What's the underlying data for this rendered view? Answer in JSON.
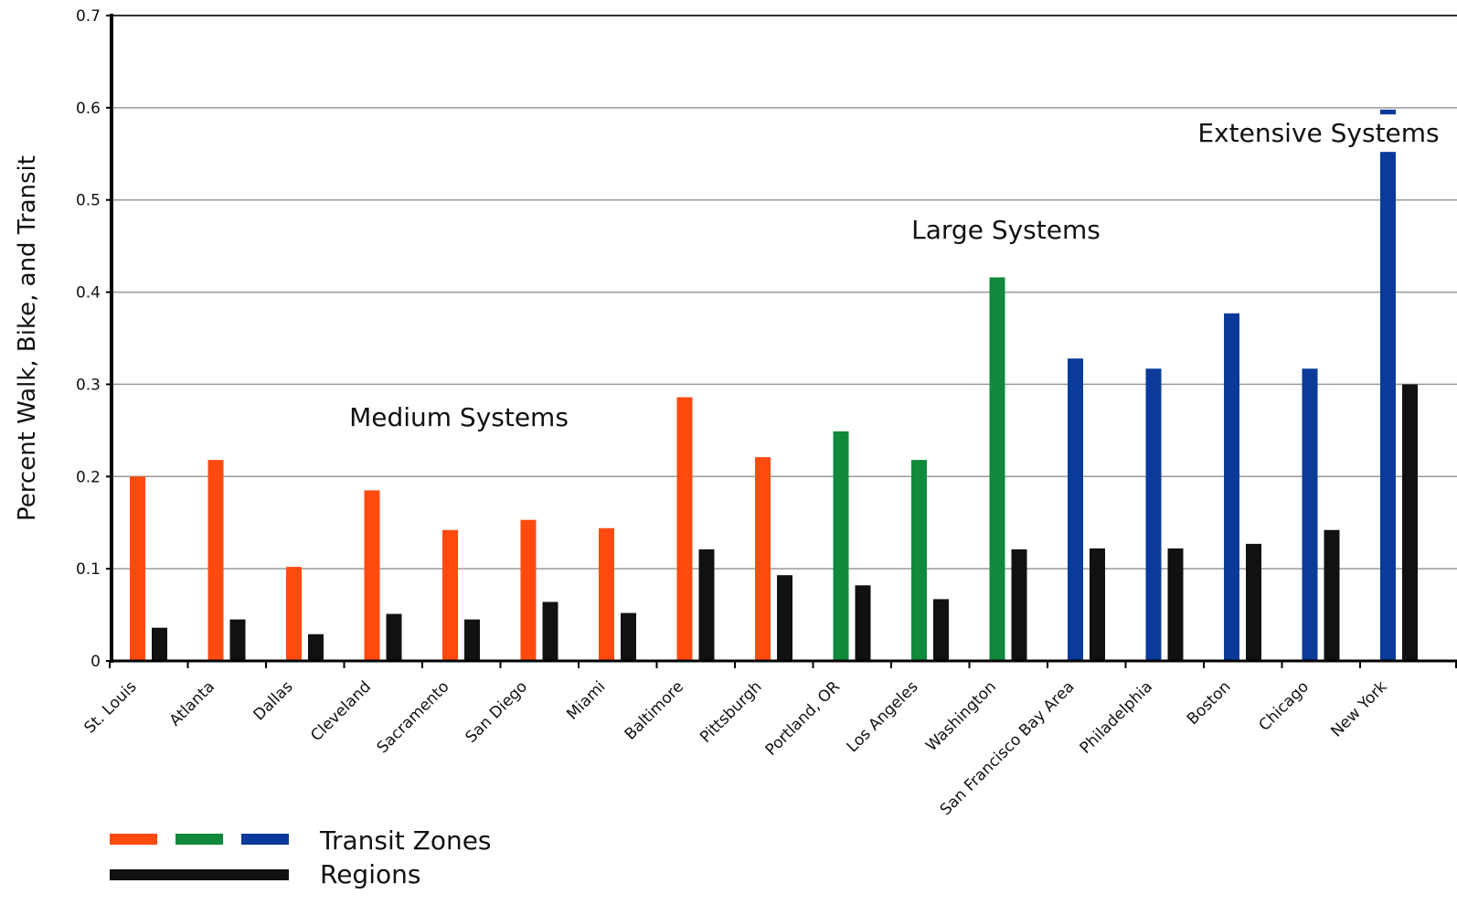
{
  "chart_data": {
    "type": "bar",
    "ylabel": "Percent Walk, Bike, and Transit",
    "xlabel": "",
    "ylim": [
      0,
      0.7
    ],
    "yticks": [
      0,
      0.1,
      0.2,
      0.3,
      0.4,
      0.5,
      0.6,
      0.7
    ],
    "ytick_labels": [
      "0",
      "0.1",
      "0.2",
      "0.3",
      "0.4",
      "0.5",
      "0.6",
      "0.7"
    ],
    "grid": true,
    "categories": [
      "St. Louis",
      "Atlanta",
      "Dallas",
      "Cleveland",
      "Sacramento",
      "San Diego",
      "Miami",
      "Baltimore",
      "Pittsburgh",
      "Portland, OR",
      "Los Angeles",
      "Washington",
      "San Francisco Bay Area",
      "Philadelphia",
      "Boston",
      "Chicago",
      "New York"
    ],
    "groups": [
      "medium",
      "medium",
      "medium",
      "medium",
      "medium",
      "medium",
      "medium",
      "medium",
      "medium",
      "large",
      "large",
      "large",
      "extensive",
      "extensive",
      "extensive",
      "extensive",
      "extensive"
    ],
    "group_colors": {
      "medium": "#ff4a10",
      "large": "#108a3a",
      "extensive": "#0a3a9a"
    },
    "series": [
      {
        "name": "Transit Zones",
        "values": [
          0.2,
          0.218,
          0.102,
          0.185,
          0.142,
          0.153,
          0.144,
          0.286,
          0.221,
          0.249,
          0.218,
          0.416,
          0.328,
          0.317,
          0.377,
          0.317,
          0.598
        ]
      },
      {
        "name": "Regions",
        "color": "#111111",
        "values": [
          0.036,
          0.045,
          0.029,
          0.051,
          0.045,
          0.064,
          0.052,
          0.121,
          0.093,
          0.082,
          0.067,
          0.121,
          0.122,
          0.122,
          0.127,
          0.142,
          0.3
        ]
      }
    ],
    "annotations": [
      {
        "text": "Medium Systems",
        "x_category": "Sacramento",
        "y": 0.255
      },
      {
        "text": "Large Systems",
        "x_category": "Washington",
        "y": 0.458
      },
      {
        "text": "Extensive Systems",
        "x_category": "Chicago",
        "y": 0.563
      }
    ],
    "legend": {
      "placement": "bottom-left",
      "entries": [
        {
          "label": "Transit Zones",
          "colors": [
            "#ff4a10",
            "#108a3a",
            "#0a3a9a"
          ]
        },
        {
          "label": "Regions",
          "colors": [
            "#111111"
          ]
        }
      ]
    }
  }
}
